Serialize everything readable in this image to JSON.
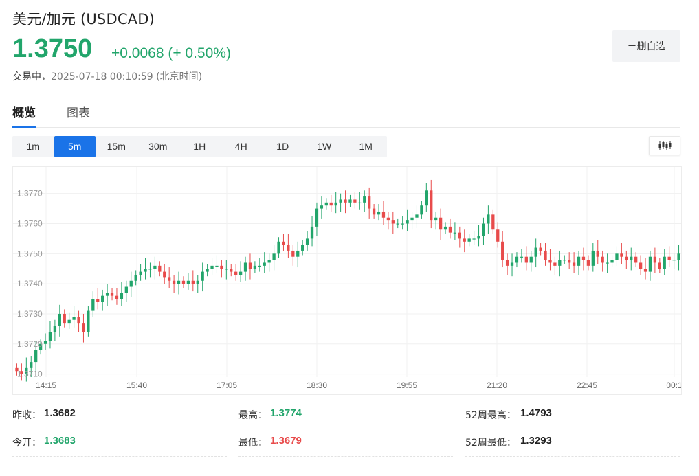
{
  "header": {
    "title": "美元/加元  (USDCAD)",
    "price": "1.3750",
    "change": "+0.0068 (+ 0.50%)",
    "status_live": "交易中，",
    "status_time": "2025-07-18 00:10:59  (北京时间)",
    "watch_button": "－删自选"
  },
  "tabs": [
    {
      "label": "概览",
      "active": true
    },
    {
      "label": "图表",
      "active": false
    }
  ],
  "intervals": [
    {
      "label": "1m"
    },
    {
      "label": "5m",
      "active": true
    },
    {
      "label": "15m"
    },
    {
      "label": "30m"
    },
    {
      "label": "1H"
    },
    {
      "label": "4H"
    },
    {
      "label": "1D"
    },
    {
      "label": "1W"
    },
    {
      "label": "1M"
    }
  ],
  "colors": {
    "up": "#22a56b",
    "down": "#e84b4b",
    "accent": "#1a73e8"
  },
  "chart_data": {
    "type": "candlestick",
    "title": "",
    "xlabel": "",
    "ylabel": "",
    "x_ticks": [
      "14:15",
      "15:40",
      "17:05",
      "18:30",
      "19:55",
      "21:20",
      "22:45",
      "00:1"
    ],
    "y_ticks": [
      "1.3770",
      "1.3760",
      "1.3750",
      "1.3740",
      "1.3730",
      "1.3720",
      "1.3710"
    ],
    "ylim": [
      1.3709,
      1.3777
    ],
    "grid": true,
    "closes": [
      1.3711,
      1.371,
      1.3712,
      1.3714,
      1.3718,
      1.372,
      1.3721,
      1.3724,
      1.3726,
      1.373,
      1.3727,
      1.3728,
      1.3729,
      1.3727,
      1.3724,
      1.3731,
      1.3735,
      1.3734,
      1.3736,
      1.3737,
      1.3736,
      1.3735,
      1.3737,
      1.3739,
      1.3741,
      1.3743,
      1.3744,
      1.3745,
      1.3745,
      1.3746,
      1.3744,
      1.3742,
      1.3741,
      1.374,
      1.3741,
      1.374,
      1.3741,
      1.374,
      1.3741,
      1.3744,
      1.3745,
      1.3746,
      1.3746,
      1.3745,
      1.3745,
      1.3744,
      1.3743,
      1.3744,
      1.3747,
      1.3745,
      1.3746,
      1.3746,
      1.3747,
      1.3748,
      1.375,
      1.3754,
      1.3753,
      1.3751,
      1.3749,
      1.3751,
      1.3753,
      1.3755,
      1.3759,
      1.3765,
      1.3766,
      1.3767,
      1.3766,
      1.3767,
      1.3768,
      1.3767,
      1.3768,
      1.3767,
      1.3767,
      1.3769,
      1.3765,
      1.3763,
      1.3764,
      1.3762,
      1.3761,
      1.376,
      1.376,
      1.376,
      1.3761,
      1.3762,
      1.3763,
      1.3766,
      1.3771,
      1.3761,
      1.3762,
      1.3758,
      1.3759,
      1.3757,
      1.3757,
      1.3755,
      1.3754,
      1.3755,
      1.3755,
      1.3756,
      1.376,
      1.3763,
      1.3758,
      1.3754,
      1.3748,
      1.3746,
      1.3747,
      1.3749,
      1.3749,
      1.3747,
      1.3749,
      1.3752,
      1.3751,
      1.3748,
      1.3747,
      1.3746,
      1.3748,
      1.3748,
      1.3747,
      1.3746,
      1.3749,
      1.3748,
      1.3746,
      1.3751,
      1.3749,
      1.3747,
      1.3747,
      1.3748,
      1.375,
      1.3749,
      1.3748,
      1.3749,
      1.3747,
      1.3745,
      1.3744,
      1.3749,
      1.3747,
      1.3745,
      1.3749,
      1.3748,
      1.3748,
      1.375
    ]
  },
  "stats": [
    {
      "label": "昨收：",
      "value": "1.3682",
      "tone": "neutral"
    },
    {
      "label": "最高：",
      "value": "1.3774",
      "tone": "up"
    },
    {
      "label": "52周最高：",
      "value": "1.4793",
      "tone": "neutral"
    },
    {
      "label": "今开：",
      "value": "1.3683",
      "tone": "up"
    },
    {
      "label": "最低：",
      "value": "1.3679",
      "tone": "down"
    },
    {
      "label": "52周最低：",
      "value": "1.3293",
      "tone": "neutral"
    }
  ]
}
